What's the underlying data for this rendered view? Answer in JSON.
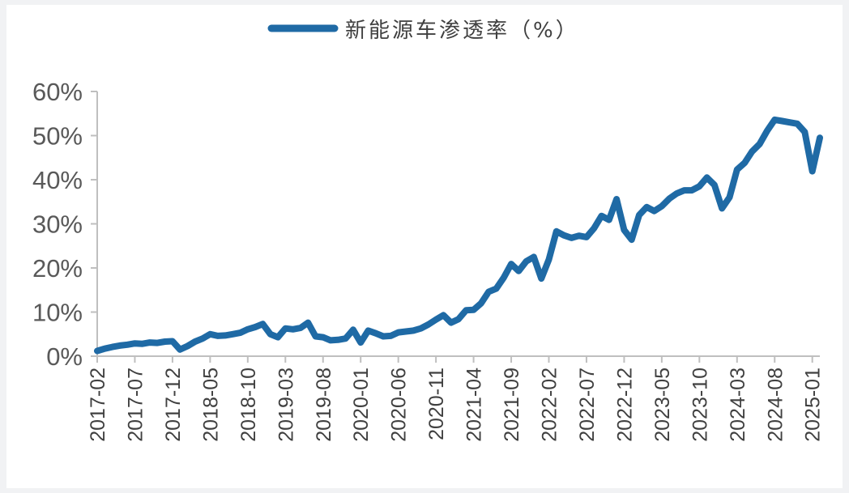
{
  "chart_data": {
    "type": "line",
    "legend": {
      "label": "新能源车渗透率（%）",
      "position": "top-center"
    },
    "series": [
      {
        "name": "新能源车渗透率（%）",
        "color": "#1f6aa5",
        "x": [
          "2017-02",
          "2017-03",
          "2017-04",
          "2017-05",
          "2017-06",
          "2017-07",
          "2017-08",
          "2017-09",
          "2017-10",
          "2017-11",
          "2017-12",
          "2018-01",
          "2018-02",
          "2018-03",
          "2018-04",
          "2018-05",
          "2018-06",
          "2018-07",
          "2018-08",
          "2018-09",
          "2018-10",
          "2018-11",
          "2018-12",
          "2019-01",
          "2019-02",
          "2019-03",
          "2019-04",
          "2019-05",
          "2019-06",
          "2019-07",
          "2019-08",
          "2019-09",
          "2019-10",
          "2019-11",
          "2019-12",
          "2020-01",
          "2020-02",
          "2020-03",
          "2020-04",
          "2020-05",
          "2020-06",
          "2020-07",
          "2020-08",
          "2020-09",
          "2020-10",
          "2020-11",
          "2020-12",
          "2021-01",
          "2021-02",
          "2021-03",
          "2021-04",
          "2021-05",
          "2021-06",
          "2021-07",
          "2021-08",
          "2021-09",
          "2021-10",
          "2021-11",
          "2021-12",
          "2022-01",
          "2022-02",
          "2022-03",
          "2022-04",
          "2022-05",
          "2022-06",
          "2022-07",
          "2022-08",
          "2022-09",
          "2022-10",
          "2022-11",
          "2022-12",
          "2023-01",
          "2023-02",
          "2023-03",
          "2023-04",
          "2023-05",
          "2023-06",
          "2023-07",
          "2023-08",
          "2023-09",
          "2023-10",
          "2023-11",
          "2023-12",
          "2024-01",
          "2024-02",
          "2024-03",
          "2024-04",
          "2024-05",
          "2024-06",
          "2024-07",
          "2024-08",
          "2024-09",
          "2024-10",
          "2024-11",
          "2024-12",
          "2025-01",
          "2025-02"
        ],
        "values": [
          1.2,
          1.7,
          2.1,
          2.4,
          2.6,
          2.9,
          2.8,
          3.1,
          3.0,
          3.3,
          3.4,
          1.5,
          2.3,
          3.3,
          4.0,
          5.0,
          4.6,
          4.7,
          5.0,
          5.3,
          6.1,
          6.6,
          7.3,
          5.0,
          4.3,
          6.3,
          6.1,
          6.4,
          7.6,
          4.5,
          4.3,
          3.6,
          3.7,
          4.0,
          6.0,
          3.1,
          5.8,
          5.2,
          4.5,
          4.6,
          5.4,
          5.6,
          5.8,
          6.3,
          7.2,
          8.3,
          9.3,
          7.6,
          8.4,
          10.4,
          10.5,
          12.0,
          14.6,
          15.3,
          17.8,
          20.9,
          19.3,
          21.5,
          22.5,
          17.6,
          21.9,
          28.3,
          27.4,
          26.8,
          27.3,
          27.0,
          29.0,
          31.8,
          30.9,
          35.6,
          28.6,
          26.4,
          32.0,
          33.8,
          32.9,
          34.0,
          35.7,
          36.9,
          37.6,
          37.6,
          38.5,
          40.5,
          38.8,
          33.5,
          36.0,
          42.3,
          43.8,
          46.4,
          48.1,
          51.1,
          53.6,
          53.3,
          53.0,
          52.7,
          50.8,
          41.9,
          49.5
        ]
      }
    ],
    "y_ticks": [
      "0%",
      "10%",
      "20%",
      "30%",
      "40%",
      "50%",
      "60%"
    ],
    "ylim": [
      0,
      60
    ],
    "x_tick_labels": [
      "2017-02",
      "2017-07",
      "2017-12",
      "2018-05",
      "2018-10",
      "2019-03",
      "2019-08",
      "2020-01",
      "2020-06",
      "2020-11",
      "2021-04",
      "2021-09",
      "2022-02",
      "2022-07",
      "2022-12",
      "2023-05",
      "2023-10",
      "2024-03",
      "2024-08",
      "2025-01"
    ],
    "grid": false
  }
}
